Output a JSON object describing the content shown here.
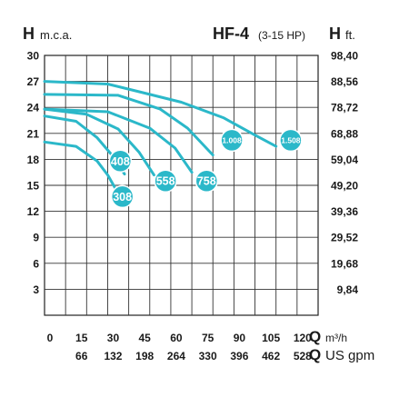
{
  "chart_data": {
    "type": "line",
    "header": {
      "left_letter": "H",
      "left_unit": "m.c.a.",
      "model": "HF-4",
      "model_range": "(3-15 HP)",
      "right_letter": "H",
      "right_unit": "ft."
    },
    "y_left_ticks": [
      "30",
      "27",
      "24",
      "21",
      "18",
      "15",
      "12",
      "9",
      "6",
      "3"
    ],
    "y_right_ticks": [
      "98,40",
      "88,56",
      "78,72",
      "68,88",
      "59,04",
      "49,20",
      "39,36",
      "29,52",
      "19,68",
      "9,84"
    ],
    "x_ticks_m3h": [
      "0",
      "15",
      "30",
      "45",
      "60",
      "75",
      "90",
      "105",
      "120"
    ],
    "x_ticks_gpm": [
      "66",
      "132",
      "198",
      "264",
      "330",
      "396",
      "462",
      "528"
    ],
    "x_label_m3h": {
      "q": "Q",
      "unit": "m³/h"
    },
    "x_label_gpm": {
      "q": "Q",
      "unit": "US gpm"
    },
    "xlim": [
      0,
      130
    ],
    "ylim": [
      0,
      30
    ],
    "grid": true,
    "line_color": "#2bb8c9",
    "series": [
      {
        "name": "308",
        "points": [
          [
            0,
            20.0
          ],
          [
            15,
            19.5
          ],
          [
            25,
            17.8
          ],
          [
            30,
            16.2
          ],
          [
            34,
            14.5
          ]
        ]
      },
      {
        "name": "408",
        "points": [
          [
            0,
            23.0
          ],
          [
            15,
            22.4
          ],
          [
            25,
            20.5
          ],
          [
            32,
            18.5
          ],
          [
            38,
            16.3
          ]
        ]
      },
      {
        "name": "558",
        "points": [
          [
            0,
            23.8
          ],
          [
            20,
            23.2
          ],
          [
            35,
            21.5
          ],
          [
            45,
            18.8
          ],
          [
            52,
            16.2
          ]
        ]
      },
      {
        "name": "758",
        "points": [
          [
            0,
            23.8
          ],
          [
            30,
            23.5
          ],
          [
            50,
            21.6
          ],
          [
            62,
            19.3
          ],
          [
            70,
            16.5
          ]
        ]
      },
      {
        "name": "1.008",
        "points": [
          [
            0,
            25.5
          ],
          [
            35,
            25.4
          ],
          [
            55,
            23.8
          ],
          [
            68,
            21.6
          ],
          [
            80,
            18.5
          ]
        ]
      },
      {
        "name": "1.508",
        "points": [
          [
            0,
            27.0
          ],
          [
            30,
            26.7
          ],
          [
            45,
            25.8
          ],
          [
            65,
            24.6
          ],
          [
            85,
            22.8
          ],
          [
            100,
            20.8
          ],
          [
            110,
            19.5
          ]
        ]
      }
    ],
    "labels": [
      {
        "text": "308",
        "x": 37,
        "y": 13.7,
        "size": "big"
      },
      {
        "text": "408",
        "x": 36,
        "y": 17.8,
        "size": "big"
      },
      {
        "text": "558",
        "x": 57.5,
        "y": 15.5,
        "size": "big"
      },
      {
        "text": "758",
        "x": 77,
        "y": 15.5,
        "size": "big"
      },
      {
        "text": "1.008",
        "x": 89,
        "y": 20.2,
        "size": "small"
      },
      {
        "text": "1.508",
        "x": 117,
        "y": 20.2,
        "size": "small"
      }
    ]
  }
}
